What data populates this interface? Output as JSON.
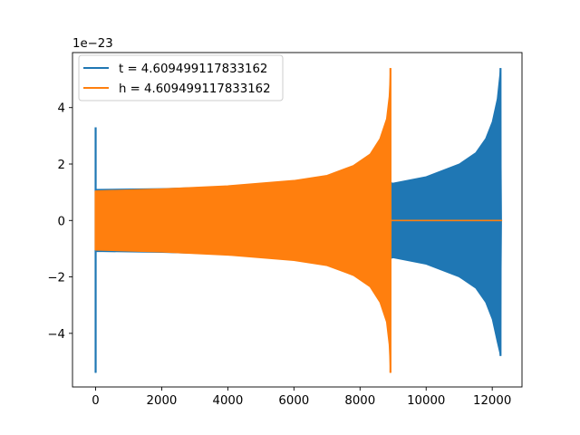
{
  "chart_data": {
    "type": "line",
    "title": "",
    "xlabel": "",
    "ylabel": "",
    "xlim": [
      -700,
      12900
    ],
    "ylim": [
      -5.9,
      5.95
    ],
    "y_offset_label": "1e−23",
    "grid": false,
    "legend_placement": "top-left",
    "x_ticks": [
      {
        "value": 0,
        "label": "0"
      },
      {
        "value": 2000,
        "label": "2000"
      },
      {
        "value": 4000,
        "label": "4000"
      },
      {
        "value": 6000,
        "label": "6000"
      },
      {
        "value": 8000,
        "label": "8000"
      },
      {
        "value": 10000,
        "label": "10000"
      },
      {
        "value": 12000,
        "label": "12000"
      }
    ],
    "y_ticks": [
      {
        "value": -4,
        "label": "−4"
      },
      {
        "value": -2,
        "label": "−2"
      },
      {
        "value": 0,
        "label": "0"
      },
      {
        "value": 2,
        "label": "2"
      },
      {
        "value": 4,
        "label": "4"
      }
    ],
    "series": [
      {
        "name": "t = 4.609499117833162",
        "color": "#1f77b4",
        "envelope": [
          [
            0,
            3.3
          ],
          [
            5,
            1.1
          ],
          [
            2000,
            1.13
          ],
          [
            4000,
            1.2
          ],
          [
            6000,
            1.33
          ],
          [
            7000,
            1.45
          ],
          [
            8000,
            1.68
          ],
          [
            9000,
            1.32
          ],
          [
            10000,
            1.55
          ],
          [
            11000,
            2.0
          ],
          [
            11500,
            2.4
          ],
          [
            11800,
            2.9
          ],
          [
            12000,
            3.5
          ],
          [
            12150,
            4.3
          ],
          [
            12250,
            5.4
          ],
          [
            12280,
            0
          ]
        ],
        "envelope_low": [
          [
            0,
            -5.4
          ],
          [
            5,
            -1.1
          ],
          [
            2000,
            -1.13
          ],
          [
            4000,
            -1.2
          ],
          [
            6000,
            -1.33
          ],
          [
            7000,
            -1.45
          ],
          [
            8000,
            -1.68
          ],
          [
            9000,
            -1.32
          ],
          [
            10000,
            -1.55
          ],
          [
            11000,
            -2.0
          ],
          [
            11500,
            -2.4
          ],
          [
            11800,
            -2.9
          ],
          [
            12000,
            -3.5
          ],
          [
            12150,
            -4.3
          ],
          [
            12250,
            -4.8
          ],
          [
            12280,
            0
          ]
        ]
      },
      {
        "name": "h = 4.609499117833162",
        "color": "#ff7f0e",
        "envelope": [
          [
            0,
            1.05
          ],
          [
            2000,
            1.12
          ],
          [
            4000,
            1.23
          ],
          [
            6000,
            1.42
          ],
          [
            7000,
            1.6
          ],
          [
            7800,
            1.95
          ],
          [
            8300,
            2.35
          ],
          [
            8600,
            2.9
          ],
          [
            8800,
            3.6
          ],
          [
            8880,
            4.4
          ],
          [
            8920,
            5.4
          ],
          [
            8940,
            0
          ]
        ],
        "envelope_low": [
          [
            0,
            -1.05
          ],
          [
            2000,
            -1.12
          ],
          [
            4000,
            -1.23
          ],
          [
            6000,
            -1.42
          ],
          [
            7000,
            -1.6
          ],
          [
            7800,
            -1.95
          ],
          [
            8300,
            -2.35
          ],
          [
            8600,
            -2.9
          ],
          [
            8800,
            -3.6
          ],
          [
            8880,
            -4.4
          ],
          [
            8920,
            -5.4
          ],
          [
            8940,
            0
          ]
        ],
        "flat_zero": [
          8940,
          12300
        ]
      }
    ]
  }
}
